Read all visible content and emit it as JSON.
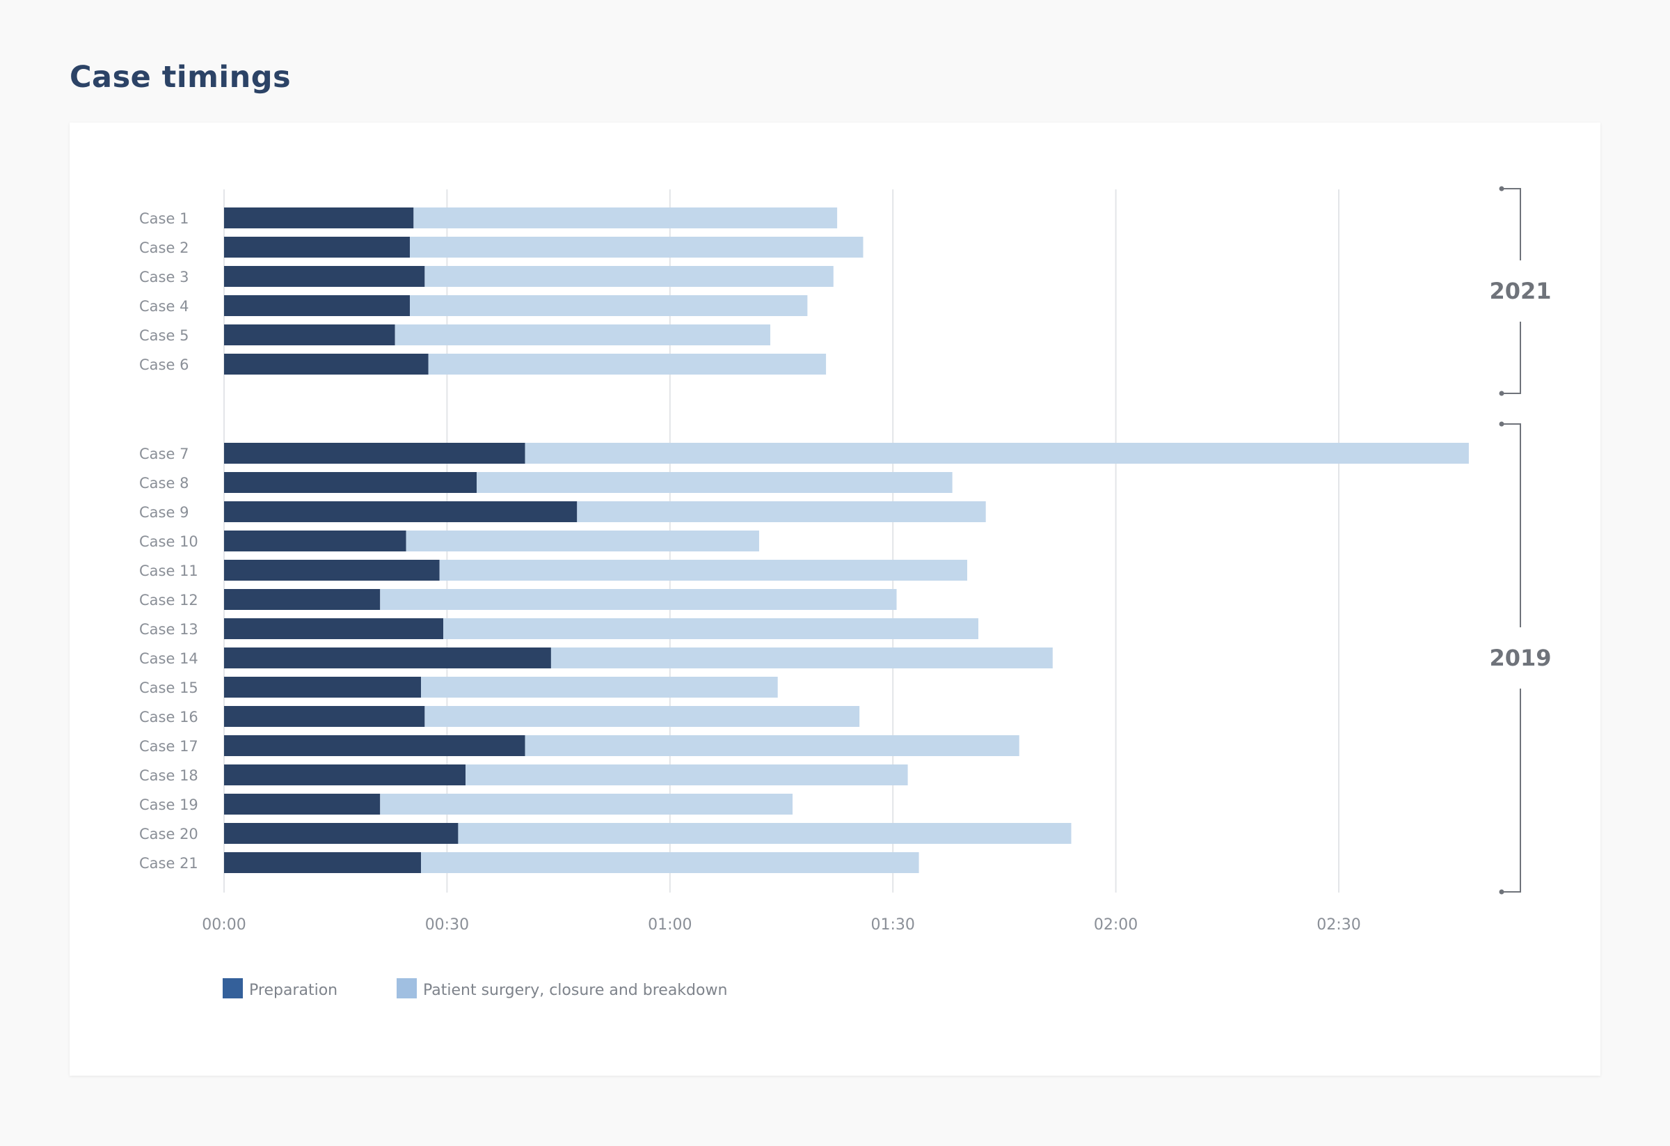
{
  "page": {
    "title": "Case timings"
  },
  "colors": {
    "preparation": "#2b4265",
    "surgery": "#c2d7eb",
    "legend_preparation": "#34609a",
    "legend_surgery": "#a0bfe1",
    "gridline": "#e3e5e8",
    "bracket": "#6f737a"
  },
  "chart_data": {
    "type": "bar",
    "orientation": "horizontal",
    "stacked": true,
    "title": "Case timings",
    "xlabel": "",
    "ylabel": "",
    "x_unit": "minutes",
    "xlim": [
      0,
      171
    ],
    "x_ticks": [
      {
        "value": 0,
        "label": "00:00"
      },
      {
        "value": 30,
        "label": "00:30"
      },
      {
        "value": 60,
        "label": "01:00"
      },
      {
        "value": 90,
        "label": "01:30"
      },
      {
        "value": 120,
        "label": "02:00"
      },
      {
        "value": 150,
        "label": "02:30"
      }
    ],
    "grid": true,
    "legend_position": "bottom-left",
    "categories": [
      "Case 1",
      "Case 2",
      "Case 3",
      "Case 4",
      "Case 5",
      "Case 6",
      "Case 7",
      "Case 8",
      "Case 9",
      "Case 10",
      "Case 11",
      "Case 12",
      "Case 13",
      "Case 14",
      "Case 15",
      "Case 16",
      "Case 17",
      "Case 18",
      "Case 19",
      "Case 20",
      "Case 21"
    ],
    "series": [
      {
        "name": "Preparation",
        "color_key": "preparation",
        "values": [
          25.5,
          25,
          27,
          25,
          23,
          27.5,
          40.5,
          34,
          47.5,
          24.5,
          29,
          21,
          29.5,
          44,
          26.5,
          27,
          40.5,
          32.5,
          21,
          31.5,
          26.5
        ]
      },
      {
        "name": "Patient surgery, closure and breakdown",
        "color_key": "surgery",
        "values": [
          57,
          61,
          55,
          53.5,
          50.5,
          53.5,
          127,
          64,
          55,
          47.5,
          71,
          69.5,
          72,
          67.5,
          48,
          58.5,
          66.5,
          59.5,
          55.5,
          82.5,
          67
        ]
      }
    ],
    "groups": [
      {
        "label": "2021",
        "from": 0,
        "to": 5
      },
      {
        "label": "2019",
        "from": 6,
        "to": 20
      }
    ]
  }
}
